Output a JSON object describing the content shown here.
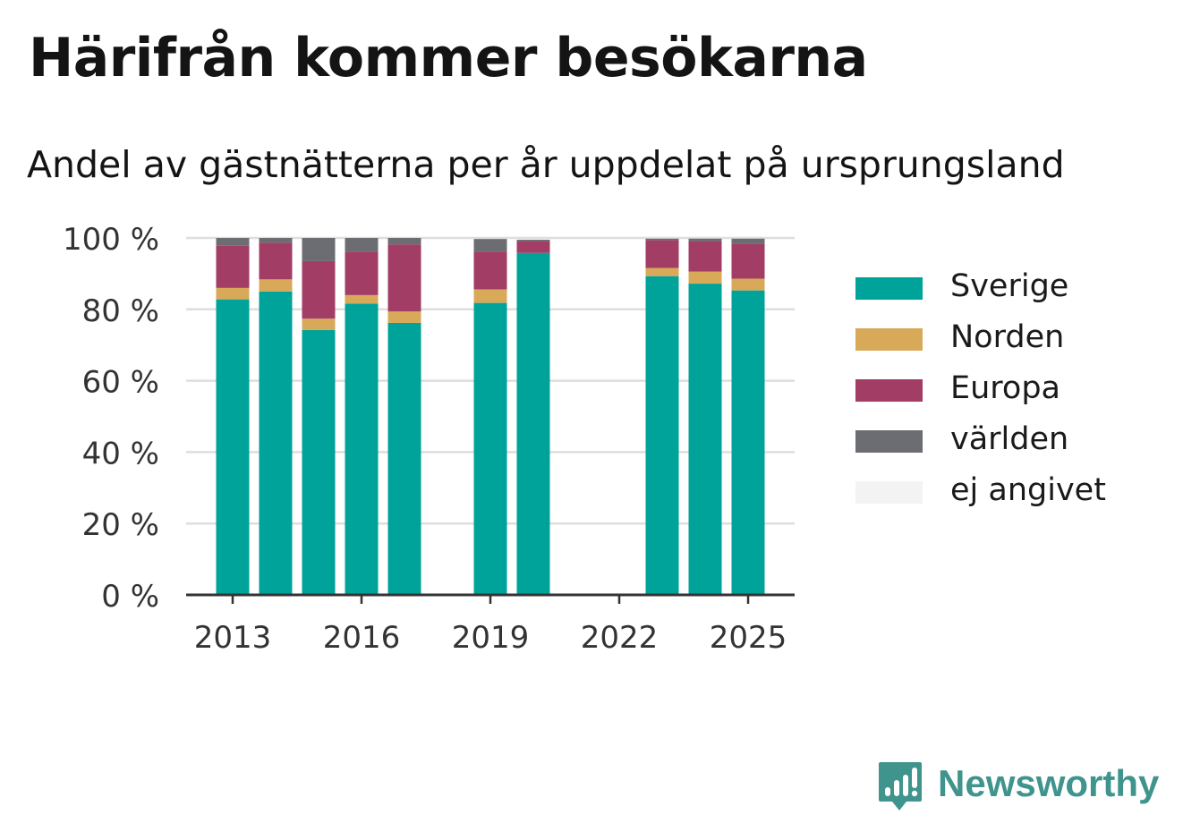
{
  "chart_data": {
    "type": "bar",
    "stacked": true,
    "title": "Härifrån kommer besökarna",
    "subtitle": "Andel av gästnätterna per år uppdelat på ursprungsland",
    "x": [
      2013,
      2014,
      2015,
      2016,
      2017,
      2018,
      2019,
      2020,
      2021,
      2022,
      2023,
      2024,
      2025
    ],
    "x_ticks": [
      2013,
      2016,
      2019,
      2022,
      2025
    ],
    "x_tick_labels": [
      "2013",
      "2016",
      "2019",
      "2022",
      "2025"
    ],
    "y_ticks": [
      0,
      20,
      40,
      60,
      80,
      100
    ],
    "y_tick_labels": [
      "0 %",
      "20 %",
      "40 %",
      "60 %",
      "80 %",
      "100 %"
    ],
    "ylim": [
      0,
      100
    ],
    "grid": true,
    "legend_position": "right",
    "series": [
      {
        "name": "Sverige",
        "color": "#00a39a",
        "values": [
          82.8,
          85.0,
          74.2,
          81.6,
          76.2,
          null,
          81.8,
          95.8,
          null,
          null,
          89.3,
          87.2,
          85.3
        ]
      },
      {
        "name": "Norden",
        "color": "#d8a959",
        "values": [
          3.2,
          3.4,
          3.2,
          2.4,
          3.2,
          null,
          3.8,
          0,
          null,
          null,
          2.3,
          3.4,
          3.3
        ]
      },
      {
        "name": "Europa",
        "color": "#a23d66",
        "values": [
          11.8,
          10.3,
          16.1,
          12.2,
          18.8,
          null,
          10.6,
          3.3,
          null,
          null,
          7.8,
          8.5,
          9.8
        ]
      },
      {
        "name": "världen",
        "color": "#6c6c73",
        "values": [
          2.2,
          1.3,
          6.5,
          3.8,
          1.8,
          null,
          3.5,
          0.4,
          null,
          null,
          0.4,
          0.7,
          1.4
        ]
      },
      {
        "name": "ej angivet",
        "color": "#f3f3f3",
        "values": [
          0,
          0,
          0,
          0,
          0,
          null,
          0,
          0,
          null,
          null,
          0,
          0,
          0
        ]
      }
    ]
  },
  "brand": {
    "name": "Newsworthy",
    "color": "#3f948d"
  }
}
